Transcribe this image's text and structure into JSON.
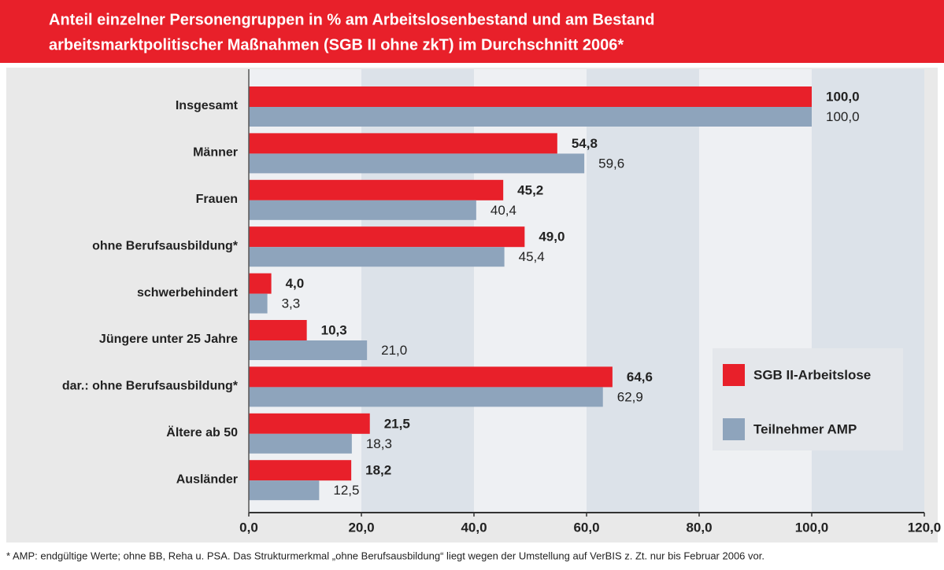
{
  "chart_data": {
    "type": "hbar",
    "title": [
      "Anteil einzelner Personengruppen in % am Arbeitslosenbestand und am Bestand",
      "arbeitsmarktpolitischer Maßnahmen (SGB II ohne zkT) im Durchschnitt 2006*"
    ],
    "categories": [
      "Insgesamt",
      "Männer",
      "Frauen",
      "ohne Berufsausbildung*",
      "schwerbehindert",
      "Jüngere unter 25 Jahre",
      "dar.: ohne Berufsausbildung*",
      "Ältere ab 50",
      "Ausländer"
    ],
    "series": [
      {
        "name": "SGB II-Arbeitslose",
        "color": "#e8202a",
        "values": [
          100.0,
          54.8,
          45.2,
          49.0,
          4.0,
          10.3,
          64.6,
          21.5,
          18.2
        ],
        "value_labels": [
          "100,0",
          "54,8",
          "45,2",
          "49,0",
          "4,0",
          "10,3",
          "64,6",
          "21,5",
          "18,2"
        ]
      },
      {
        "name": "Teilnehmer AMP",
        "color": "#8ea4bc",
        "values": [
          100.0,
          59.6,
          40.4,
          45.4,
          3.3,
          21.0,
          62.9,
          18.3,
          12.5
        ],
        "value_labels": [
          "100,0",
          "59,6",
          "40,4",
          "45,4",
          "3,3",
          "21,0",
          "62,9",
          "18,3",
          "12,5"
        ]
      }
    ],
    "xlim": [
      0,
      120
    ],
    "xticks": [
      {
        "value": 0,
        "label": "0,0"
      },
      {
        "value": 20,
        "label": "20,0"
      },
      {
        "value": 40,
        "label": "40,0"
      },
      {
        "value": 60,
        "label": "60,0"
      },
      {
        "value": 80,
        "label": "80,0"
      },
      {
        "value": 100,
        "label": "100,0"
      },
      {
        "value": 120,
        "label": "120,0"
      }
    ],
    "note": "* AMP: endgültige Werte; ohne BB, Reha u. PSA. Das Strukturmerkmal „ohne Berufsausbildung“ liegt wegen der Umstellung auf VerBIS z. Zt. nur bis Februar 2006 vor."
  }
}
